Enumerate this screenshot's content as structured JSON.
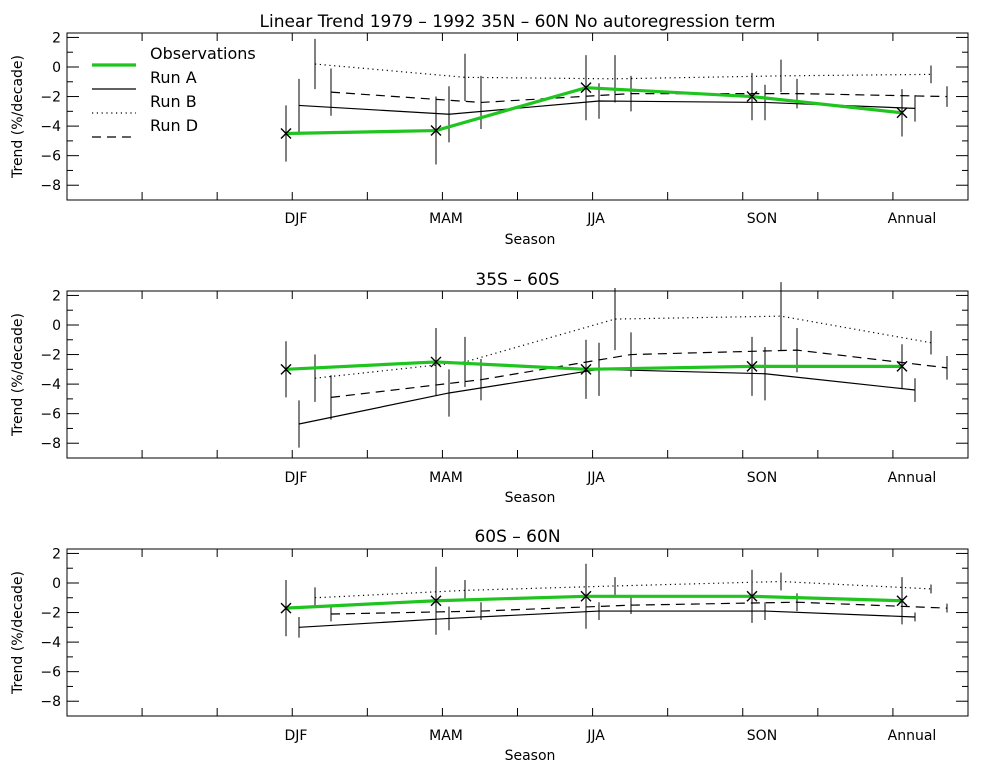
{
  "colors": {
    "observations": "#1fc41f",
    "runs": "#000000",
    "axis": "#000000",
    "background": "#ffffff"
  },
  "legend": {
    "placement": "top-left",
    "entries": [
      {
        "label": "Observations",
        "style": "thick-green"
      },
      {
        "label": "Run A",
        "style": "solid"
      },
      {
        "label": "Run B",
        "style": "dotted"
      },
      {
        "label": "Run D",
        "style": "dashed"
      }
    ]
  },
  "chart_data": [
    {
      "type": "line",
      "title": "Linear Trend 1979 – 1992   35N – 60N   No autoregression term",
      "xlabel": "Season",
      "ylabel": "Trend (%/decade)",
      "categories": [
        "DJF",
        "MAM",
        "JJA",
        "SON",
        "Annual"
      ],
      "ylim": [
        -9,
        2.3
      ],
      "yticks": [
        2,
        0,
        -2,
        -4,
        -6,
        -8
      ],
      "series": [
        {
          "name": "Observations",
          "style": "thick-green",
          "marker": "x",
          "offset": 0,
          "values": [
            -4.5,
            -4.3,
            -1.4,
            -2.0,
            -3.1
          ],
          "err": [
            1.9,
            2.3,
            2.2,
            1.6,
            1.6
          ]
        },
        {
          "name": "Run A",
          "style": "solid",
          "offset": 1,
          "values": [
            -2.6,
            -3.2,
            -2.3,
            -2.4,
            -2.8
          ],
          "err": [
            1.8,
            1.9,
            1.2,
            1.2,
            0.9
          ]
        },
        {
          "name": "Run B",
          "style": "dotted",
          "offset": 2,
          "values": [
            0.2,
            -0.7,
            -0.8,
            -0.6,
            -0.5
          ],
          "err": [
            1.7,
            1.6,
            1.6,
            1.1,
            0.6
          ]
        },
        {
          "name": "Run D",
          "style": "dashed",
          "offset": 3,
          "values": [
            -1.7,
            -2.4,
            -1.8,
            -1.8,
            -2.0
          ],
          "err": [
            1.6,
            1.8,
            1.2,
            1.0,
            0.7
          ]
        }
      ]
    },
    {
      "type": "line",
      "title": "35S – 60S",
      "xlabel": "Season",
      "ylabel": "Trend (%/decade)",
      "categories": [
        "DJF",
        "MAM",
        "JJA",
        "SON",
        "Annual"
      ],
      "ylim": [
        -9,
        2.3
      ],
      "yticks": [
        2,
        0,
        -2,
        -4,
        -6,
        -8
      ],
      "series": [
        {
          "name": "Observations",
          "style": "thick-green",
          "marker": "x",
          "offset": 0,
          "values": [
            -3.0,
            -2.5,
            -3.0,
            -2.8,
            -2.8
          ],
          "err": [
            1.9,
            2.3,
            2.0,
            2.0,
            1.5
          ]
        },
        {
          "name": "Run A",
          "style": "solid",
          "offset": 1,
          "values": [
            -6.7,
            -4.6,
            -3.0,
            -3.3,
            -4.4
          ],
          "err": [
            1.6,
            1.6,
            1.8,
            1.8,
            0.8
          ]
        },
        {
          "name": "Run B",
          "style": "dotted",
          "offset": 2,
          "values": [
            -3.6,
            -2.5,
            0.4,
            0.6,
            -1.2
          ],
          "err": [
            1.6,
            1.7,
            2.1,
            2.3,
            0.8
          ]
        },
        {
          "name": "Run D",
          "style": "dashed",
          "offset": 3,
          "values": [
            -4.9,
            -3.7,
            -2.0,
            -1.7,
            -2.9
          ],
          "err": [
            1.5,
            1.4,
            1.5,
            1.5,
            0.8
          ]
        }
      ]
    },
    {
      "type": "line",
      "title": "60S – 60N",
      "xlabel": "Season",
      "ylabel": "Trend (%/decade)",
      "categories": [
        "DJF",
        "MAM",
        "JJA",
        "SON",
        "Annual"
      ],
      "ylim": [
        -9,
        2.3
      ],
      "yticks": [
        2,
        0,
        -2,
        -4,
        -6,
        -8
      ],
      "series": [
        {
          "name": "Observations",
          "style": "thick-green",
          "marker": "x",
          "offset": 0,
          "values": [
            -1.7,
            -1.2,
            -0.9,
            -0.9,
            -1.2
          ],
          "err": [
            1.9,
            2.3,
            2.2,
            1.8,
            1.6
          ]
        },
        {
          "name": "Run A",
          "style": "solid",
          "offset": 1,
          "values": [
            -3.0,
            -2.4,
            -1.9,
            -1.9,
            -2.3
          ],
          "err": [
            0.7,
            0.8,
            0.6,
            0.6,
            0.3
          ]
        },
        {
          "name": "Run B",
          "style": "dotted",
          "offset": 2,
          "values": [
            -1.0,
            -0.5,
            -0.2,
            0.1,
            -0.4
          ],
          "err": [
            0.7,
            0.7,
            0.6,
            0.6,
            0.3
          ]
        },
        {
          "name": "Run D",
          "style": "dashed",
          "offset": 3,
          "values": [
            -2.1,
            -1.9,
            -1.5,
            -1.3,
            -1.7
          ],
          "err": [
            0.5,
            0.6,
            0.6,
            0.6,
            0.3
          ]
        }
      ]
    }
  ]
}
